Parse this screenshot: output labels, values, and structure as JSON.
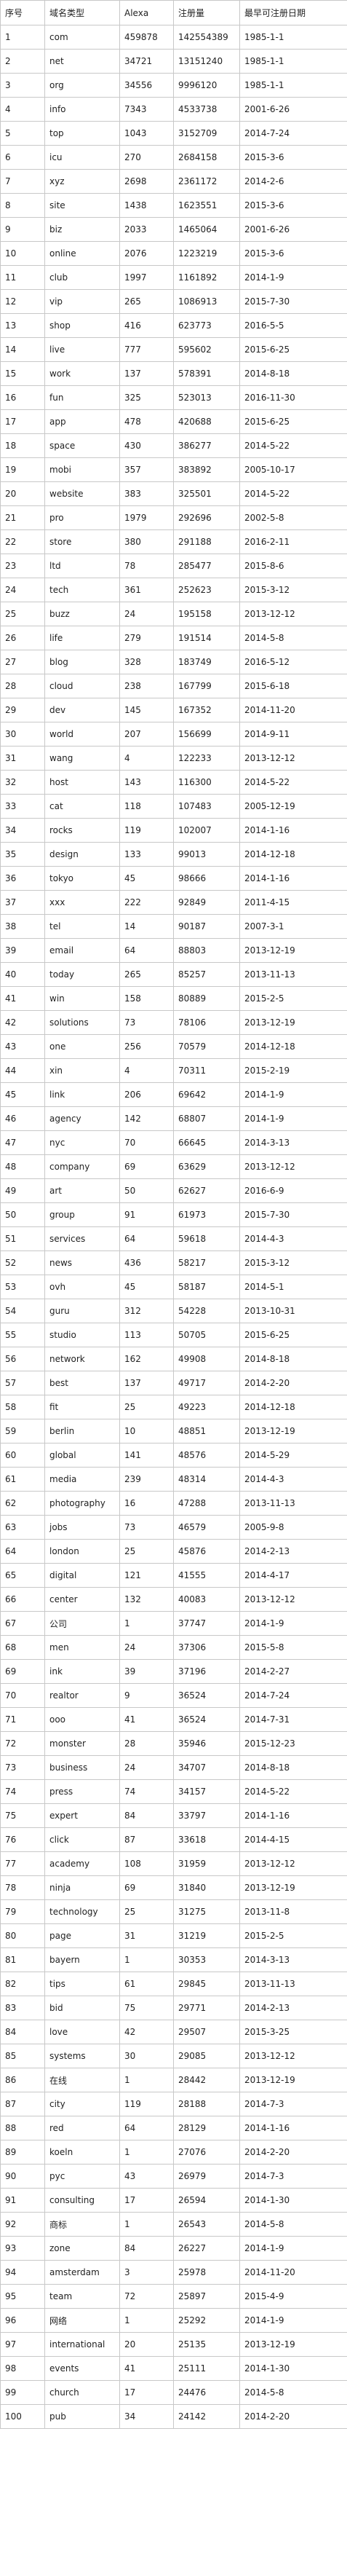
{
  "headers": [
    "序号",
    "域名类型",
    "Alexa",
    "注册量",
    "最早可注册日期"
  ],
  "rows": [
    [
      "1",
      "com",
      "459878",
      "142554389",
      "1985-1-1"
    ],
    [
      "2",
      "net",
      "34721",
      "13151240",
      "1985-1-1"
    ],
    [
      "3",
      "org",
      "34556",
      "9996120",
      "1985-1-1"
    ],
    [
      "4",
      "info",
      "7343",
      "4533738",
      "2001-6-26"
    ],
    [
      "5",
      "top",
      "1043",
      "3152709",
      "2014-7-24"
    ],
    [
      "6",
      "icu",
      "270",
      "2684158",
      "2015-3-6"
    ],
    [
      "7",
      "xyz",
      "2698",
      "2361172",
      "2014-2-6"
    ],
    [
      "8",
      "site",
      "1438",
      "1623551",
      "2015-3-6"
    ],
    [
      "9",
      "biz",
      "2033",
      "1465064",
      "2001-6-26"
    ],
    [
      "10",
      "online",
      "2076",
      "1223219",
      "2015-3-6"
    ],
    [
      "11",
      "club",
      "1997",
      "1161892",
      "2014-1-9"
    ],
    [
      "12",
      "vip",
      "265",
      "1086913",
      "2015-7-30"
    ],
    [
      "13",
      "shop",
      "416",
      "623773",
      "2016-5-5"
    ],
    [
      "14",
      "live",
      "777",
      "595602",
      "2015-6-25"
    ],
    [
      "15",
      "work",
      "137",
      "578391",
      "2014-8-18"
    ],
    [
      "16",
      "fun",
      "325",
      "523013",
      "2016-11-30"
    ],
    [
      "17",
      "app",
      "478",
      "420688",
      "2015-6-25"
    ],
    [
      "18",
      "space",
      "430",
      "386277",
      "2014-5-22"
    ],
    [
      "19",
      "mobi",
      "357",
      "383892",
      "2005-10-17"
    ],
    [
      "20",
      "website",
      "383",
      "325501",
      "2014-5-22"
    ],
    [
      "21",
      "pro",
      "1979",
      "292696",
      "2002-5-8"
    ],
    [
      "22",
      "store",
      "380",
      "291188",
      "2016-2-11"
    ],
    [
      "23",
      "ltd",
      "78",
      "285477",
      "2015-8-6"
    ],
    [
      "24",
      "tech",
      "361",
      "252623",
      "2015-3-12"
    ],
    [
      "25",
      "buzz",
      "24",
      "195158",
      "2013-12-12"
    ],
    [
      "26",
      "life",
      "279",
      "191514",
      "2014-5-8"
    ],
    [
      "27",
      "blog",
      "328",
      "183749",
      "2016-5-12"
    ],
    [
      "28",
      "cloud",
      "238",
      "167799",
      "2015-6-18"
    ],
    [
      "29",
      "dev",
      "145",
      "167352",
      "2014-11-20"
    ],
    [
      "30",
      "world",
      "207",
      "156699",
      "2014-9-11"
    ],
    [
      "31",
      "wang",
      "4",
      "122233",
      "2013-12-12"
    ],
    [
      "32",
      "host",
      "143",
      "116300",
      "2014-5-22"
    ],
    [
      "33",
      "cat",
      "118",
      "107483",
      "2005-12-19"
    ],
    [
      "34",
      "rocks",
      "119",
      "102007",
      "2014-1-16"
    ],
    [
      "35",
      "design",
      "133",
      "99013",
      "2014-12-18"
    ],
    [
      "36",
      "tokyo",
      "45",
      "98666",
      "2014-1-16"
    ],
    [
      "37",
      "xxx",
      "222",
      "92849",
      "2011-4-15"
    ],
    [
      "38",
      "tel",
      "14",
      "90187",
      "2007-3-1"
    ],
    [
      "39",
      "email",
      "64",
      "88803",
      "2013-12-19"
    ],
    [
      "40",
      "today",
      "265",
      "85257",
      "2013-11-13"
    ],
    [
      "41",
      "win",
      "158",
      "80889",
      "2015-2-5"
    ],
    [
      "42",
      "solutions",
      "73",
      "78106",
      "2013-12-19"
    ],
    [
      "43",
      "one",
      "256",
      "70579",
      "2014-12-18"
    ],
    [
      "44",
      "xin",
      "4",
      "70311",
      "2015-2-19"
    ],
    [
      "45",
      "link",
      "206",
      "69642",
      "2014-1-9"
    ],
    [
      "46",
      "agency",
      "142",
      "68807",
      "2014-1-9"
    ],
    [
      "47",
      "nyc",
      "70",
      "66645",
      "2014-3-13"
    ],
    [
      "48",
      "company",
      "69",
      "63629",
      "2013-12-12"
    ],
    [
      "49",
      "art",
      "50",
      "62627",
      "2016-6-9"
    ],
    [
      "50",
      "group",
      "91",
      "61973",
      "2015-7-30"
    ],
    [
      "51",
      "services",
      "64",
      "59618",
      "2014-4-3"
    ],
    [
      "52",
      "news",
      "436",
      "58217",
      "2015-3-12"
    ],
    [
      "53",
      "ovh",
      "45",
      "58187",
      "2014-5-1"
    ],
    [
      "54",
      "guru",
      "312",
      "54228",
      "2013-10-31"
    ],
    [
      "55",
      "studio",
      "113",
      "50705",
      "2015-6-25"
    ],
    [
      "56",
      "network",
      "162",
      "49908",
      "2014-8-18"
    ],
    [
      "57",
      "best",
      "137",
      "49717",
      "2014-2-20"
    ],
    [
      "58",
      "fit",
      "25",
      "49223",
      "2014-12-18"
    ],
    [
      "59",
      "berlin",
      "10",
      "48851",
      "2013-12-19"
    ],
    [
      "60",
      "global",
      "141",
      "48576",
      "2014-5-29"
    ],
    [
      "61",
      "media",
      "239",
      "48314",
      "2014-4-3"
    ],
    [
      "62",
      "photography",
      "16",
      "47288",
      "2013-11-13"
    ],
    [
      "63",
      "jobs",
      "73",
      "46579",
      "2005-9-8"
    ],
    [
      "64",
      "london",
      "25",
      "45876",
      "2014-2-13"
    ],
    [
      "65",
      "digital",
      "121",
      "41555",
      "2014-4-17"
    ],
    [
      "66",
      "center",
      "132",
      "40083",
      "2013-12-12"
    ],
    [
      "67",
      "公司",
      "1",
      "37747",
      "2014-1-9"
    ],
    [
      "68",
      "men",
      "24",
      "37306",
      "2015-5-8"
    ],
    [
      "69",
      "ink",
      "39",
      "37196",
      "2014-2-27"
    ],
    [
      "70",
      "realtor",
      "9",
      "36524",
      "2014-7-24"
    ],
    [
      "71",
      "ooo",
      "41",
      "36524",
      "2014-7-31"
    ],
    [
      "72",
      "monster",
      "28",
      "35946",
      "2015-12-23"
    ],
    [
      "73",
      "business",
      "24",
      "34707",
      "2014-8-18"
    ],
    [
      "74",
      "press",
      "74",
      "34157",
      "2014-5-22"
    ],
    [
      "75",
      "expert",
      "84",
      "33797",
      "2014-1-16"
    ],
    [
      "76",
      "click",
      "87",
      "33618",
      "2014-4-15"
    ],
    [
      "77",
      "academy",
      "108",
      "31959",
      "2013-12-12"
    ],
    [
      "78",
      "ninja",
      "69",
      "31840",
      "2013-12-19"
    ],
    [
      "79",
      "technology",
      "25",
      "31275",
      "2013-11-8"
    ],
    [
      "80",
      "page",
      "31",
      "31219",
      "2015-2-5"
    ],
    [
      "81",
      "bayern",
      "1",
      "30353",
      "2014-3-13"
    ],
    [
      "82",
      "tips",
      "61",
      "29845",
      "2013-11-13"
    ],
    [
      "83",
      "bid",
      "75",
      "29771",
      "2014-2-13"
    ],
    [
      "84",
      "love",
      "42",
      "29507",
      "2015-3-25"
    ],
    [
      "85",
      "systems",
      "30",
      "29085",
      "2013-12-12"
    ],
    [
      "86",
      "在线",
      "1",
      "28442",
      "2013-12-19"
    ],
    [
      "87",
      "city",
      "119",
      "28188",
      "2014-7-3"
    ],
    [
      "88",
      "red",
      "64",
      "28129",
      "2014-1-16"
    ],
    [
      "89",
      "koeln",
      "1",
      "27076",
      "2014-2-20"
    ],
    [
      "90",
      "pyc",
      "43",
      "26979",
      "2014-7-3"
    ],
    [
      "91",
      "consulting",
      "17",
      "26594",
      "2014-1-30"
    ],
    [
      "92",
      "商标",
      "1",
      "26543",
      "2014-5-8"
    ],
    [
      "93",
      "zone",
      "84",
      "26227",
      "2014-1-9"
    ],
    [
      "94",
      "amsterdam",
      "3",
      "25978",
      "2014-11-20"
    ],
    [
      "95",
      "team",
      "72",
      "25897",
      "2015-4-9"
    ],
    [
      "96",
      "网络",
      "1",
      "25292",
      "2014-1-9"
    ],
    [
      "97",
      "international",
      "20",
      "25135",
      "2013-12-19"
    ],
    [
      "98",
      "events",
      "41",
      "25111",
      "2014-1-30"
    ],
    [
      "99",
      "church",
      "17",
      "24476",
      "2014-5-8"
    ],
    [
      "100",
      "pub",
      "34",
      "24142",
      "2014-2-20"
    ]
  ]
}
